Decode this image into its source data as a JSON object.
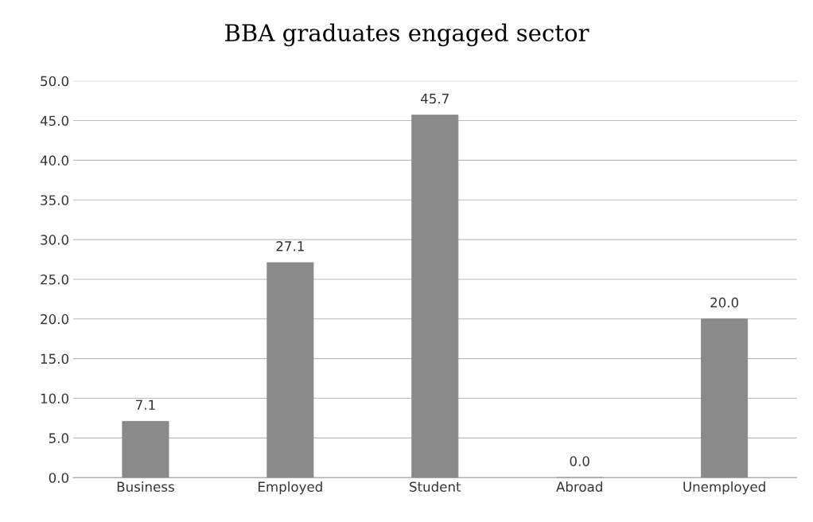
{
  "chart_data": {
    "type": "bar",
    "title": "BBA graduates engaged sector",
    "categories": [
      "Business",
      "Employed",
      "Student",
      "Abroad",
      "Unemployed"
    ],
    "values": [
      7.1,
      27.1,
      45.7,
      0.0,
      20.0
    ],
    "value_labels": [
      "7.1",
      "27.1",
      "45.7",
      "0.0",
      "20.0"
    ],
    "color": "#8a8a8a",
    "ylim": [
      0,
      50
    ],
    "yticks": [
      {
        "value": 0,
        "label": "0.0"
      },
      {
        "value": 5,
        "label": "5.0"
      },
      {
        "value": 10,
        "label": "10.0"
      },
      {
        "value": 15,
        "label": "15.0"
      },
      {
        "value": 20,
        "label": "20.0"
      },
      {
        "value": 25,
        "label": "25.0"
      },
      {
        "value": 30,
        "label": "30.0"
      },
      {
        "value": 35,
        "label": "35.0"
      },
      {
        "value": 40,
        "label": "40.0"
      },
      {
        "value": 45,
        "label": "45.0"
      },
      {
        "value": 50,
        "label": "50.0"
      }
    ],
    "grid": "y"
  }
}
